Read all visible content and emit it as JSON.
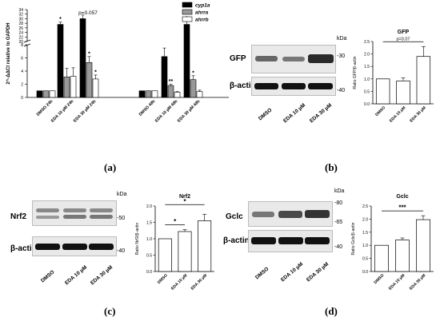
{
  "panels": {
    "a": "(a)",
    "b": "(b)",
    "c": "(c)",
    "d": "(d)"
  },
  "blots": {
    "b": {
      "target": "GFP",
      "control": "β-actin",
      "kda_label": "kDa",
      "markers": [
        "-30",
        "-40"
      ],
      "lanes": [
        "DMSO",
        "EDA 10 µM",
        "EDA 30 µM"
      ]
    },
    "c": {
      "target": "Nrf2",
      "control": "β-actin",
      "kda_label": "kDa",
      "markers": [
        "-50",
        "-40"
      ],
      "lanes": [
        "DMSO",
        "EDA 10 µM",
        "EDA 30 µM"
      ]
    },
    "d": {
      "target": "Gclc",
      "control": "β-actin",
      "kda_label": "kDa",
      "markers": [
        "-80",
        "-65",
        "-40"
      ],
      "lanes": [
        "DMSO",
        "EDA 10 µM",
        "EDA 30 µM"
      ]
    }
  },
  "chart_data": [
    {
      "id": "a",
      "type": "bar",
      "ylabel": "2^-ΔΔCt relative to GAPDH",
      "ylim": [
        0,
        34
      ],
      "axis_break": true,
      "yticks": [
        "0",
        "2",
        "4",
        "6",
        "8",
        "20",
        "22",
        "24",
        "26",
        "28",
        "30",
        "32",
        "34"
      ],
      "categories": [
        "DMSO 24h",
        "EDA 10 µM 24h",
        "EDA 30 µM 24h",
        "DMSO 48h",
        "EDA 10 µM 48h",
        "EDA 30 µM 48h"
      ],
      "series": [
        {
          "name": "cyp1a",
          "color": "#000000",
          "values": [
            1,
            27.5,
            30,
            1,
            6.2,
            27.5
          ],
          "errors": [
            0,
            1.0,
            1.6,
            0,
            1.3,
            1.4
          ],
          "sig": [
            "",
            "*",
            "",
            "",
            "",
            "*"
          ]
        },
        {
          "name": "ahrra",
          "color": "#999999",
          "values": [
            1,
            3.1,
            5.3,
            1,
            1.8,
            2.7
          ],
          "errors": [
            0,
            1.3,
            0.9,
            0,
            0.2,
            0.6
          ],
          "sig": [
            "",
            "",
            "*",
            "",
            "**",
            "*"
          ]
        },
        {
          "name": "ahrrb",
          "color": "#ffffff",
          "values": [
            1,
            3.2,
            2.8,
            1,
            0.8,
            0.9
          ],
          "errors": [
            0,
            1.3,
            0.6,
            0,
            0.1,
            0.2
          ],
          "sig": [
            "",
            "",
            "*",
            "",
            "",
            ""
          ]
        }
      ],
      "annotations": [
        {
          "text": "p=0.057"
        }
      ]
    },
    {
      "id": "b",
      "type": "bar",
      "title": "GFP",
      "ylabel": "Ratio GFP/β-actin",
      "categories": [
        "DMSO",
        "EDA 10 µM",
        "EDA 30 µM"
      ],
      "values": [
        1.0,
        0.92,
        1.9
      ],
      "errors": [
        0,
        0.12,
        0.4
      ],
      "ylim": [
        0,
        2.5
      ],
      "yticks": [
        "0.0",
        "0.5",
        "1.0",
        "1.5",
        "2.0",
        "2.5"
      ],
      "annotations": [
        {
          "text": "p=0.07",
          "from": 0,
          "to": 2
        }
      ]
    },
    {
      "id": "c",
      "type": "bar",
      "title": "Nrf2",
      "ylabel": "Ratio Nrf2/β-actin",
      "categories": [
        "DMSO",
        "EDA 10 µM",
        "EDA 30 µM"
      ],
      "values": [
        1.0,
        1.22,
        1.55
      ],
      "errors": [
        0,
        0.06,
        0.2
      ],
      "ylim": [
        0,
        2.0
      ],
      "yticks": [
        "0.0",
        "0.5",
        "1.0",
        "1.5",
        "2.0"
      ],
      "annotations": [
        {
          "text": "*",
          "from": 0,
          "to": 1
        },
        {
          "text": "*",
          "from": 0,
          "to": 2
        }
      ]
    },
    {
      "id": "d",
      "type": "bar",
      "title": "Gclc",
      "ylabel": "Ratio Gclc/β-actin",
      "categories": [
        "DMSO",
        "EDA 10 µM",
        "EDA 30 µM"
      ],
      "values": [
        1.0,
        1.2,
        1.98
      ],
      "errors": [
        0,
        0.08,
        0.15
      ],
      "ylim": [
        0,
        2.5
      ],
      "yticks": [
        "0.0",
        "0.5",
        "1.0",
        "1.5",
        "2.0",
        "2.5"
      ],
      "annotations": [
        {
          "text": "***",
          "from": 0,
          "to": 2
        }
      ]
    }
  ]
}
